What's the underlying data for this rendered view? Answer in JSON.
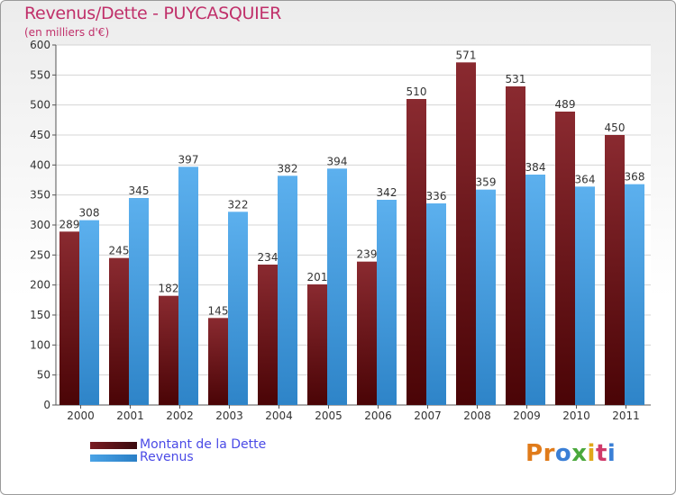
{
  "header": {
    "title": "Revenus/Dette - PUYCASQUIER",
    "subtitle": "(en milliers d'€)"
  },
  "legend": {
    "debt_label": "Montant de la Dette",
    "revenue_label": "Revenus"
  },
  "logo": {
    "text": "Proxiti",
    "letters": [
      "P",
      "r",
      "o",
      "x",
      "i",
      "t",
      "i"
    ],
    "letter_colors": [
      "#e07b1a",
      "#e07b1a",
      "#3a7fd6",
      "#4aa83c",
      "#e0a81a",
      "#d03a6a",
      "#3a7fd6"
    ]
  },
  "colors": {
    "debt": "#7a1c22",
    "revenue": "#4aa3e6",
    "title": "#c0306a"
  },
  "chart_data": {
    "type": "bar",
    "categories": [
      "2000",
      "2001",
      "2002",
      "2003",
      "2004",
      "2005",
      "2006",
      "2007",
      "2008",
      "2009",
      "2010",
      "2011"
    ],
    "series": [
      {
        "name": "Montant de la Dette",
        "values": [
          289,
          245,
          182,
          145,
          234,
          201,
          239,
          510,
          571,
          531,
          489,
          450
        ]
      },
      {
        "name": "Revenus",
        "values": [
          308,
          345,
          397,
          322,
          382,
          394,
          342,
          336,
          359,
          384,
          364,
          368
        ]
      }
    ],
    "ylim": [
      0,
      600
    ],
    "yticks": [
      0,
      50,
      100,
      150,
      200,
      250,
      300,
      350,
      400,
      450,
      500,
      550,
      600
    ],
    "grid": true,
    "legend_position": "bottom-left"
  }
}
